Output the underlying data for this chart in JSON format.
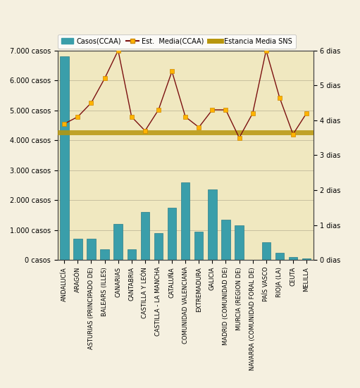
{
  "categories": [
    "ANDALUCÍA",
    "ARAGÓN",
    "ASTURIAS (PRINCIPADO DE)",
    "BALEARS (ILLES)",
    "CANARIAS",
    "CANTABRIA",
    "CASTILLA Y LEÓN",
    "CASTILLA - LA MANCHA",
    "CATALUÑA",
    "COMUNIDAD VALENCIANA",
    "EXTREMADURA",
    "GALICIA",
    "MADRID (COMUNIDAD DE)",
    "MURCIA (REGION DE)",
    "NAVARRA (COMUNIDAD FORAL DE)",
    "PAÍS VASCO",
    "RIOJA (LA)",
    "CEUTA",
    "MELILLA"
  ],
  "casos": [
    6800,
    700,
    700,
    350,
    1200,
    350,
    1600,
    900,
    1750,
    2600,
    950,
    2350,
    1350,
    1150,
    0,
    600,
    250,
    100,
    50
  ],
  "estancia_vals": [
    3.9,
    4.1,
    4.5,
    5.2,
    6.0,
    4.1,
    3.7,
    4.3,
    5.4,
    4.1,
    3.8,
    4.3,
    4.3,
    3.5,
    4.2,
    6.0,
    4.65,
    3.6,
    4.2
  ],
  "estancia_media_sns": 3.65,
  "bar_color": "#3a9eaa",
  "bar_edge_color": "#2a7e8a",
  "line_color": "#7b1010",
  "marker_facecolor": "#ffb300",
  "marker_edgecolor": "#cc8800",
  "sns_line_color": "#b8960c",
  "plot_bg_color": "#f0e8c0",
  "fig_bg_color": "#f5f0e0",
  "grid_color": "#c8c0a0",
  "ytick_labels_left": [
    "0 casos",
    "1.000 casos",
    "2.000 casos",
    "3.000 casos",
    "4.000 casos",
    "5.000 casos",
    "6.000 casos",
    "7.000 casos"
  ],
  "ytick_labels_right": [
    "0 dias",
    "1 dias",
    "2 dias",
    "3 dias",
    "4 dias",
    "5 dias",
    "6 dias"
  ],
  "legend_bar": "Casos(CCAA)",
  "legend_line": "Est.  Media(CCAA)",
  "legend_sns": "Estancia Media SNS"
}
